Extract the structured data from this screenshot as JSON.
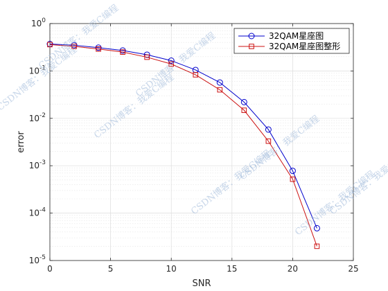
{
  "chart_data": {
    "type": "line",
    "xlabel": "SNR",
    "ylabel": "error",
    "xlim": [
      0,
      25
    ],
    "ylim": [
      1e-05,
      1
    ],
    "yscale": "log",
    "grid": "on (major and minor)",
    "legend_location": "top-right",
    "x_ticks": [
      "0",
      "5",
      "10",
      "15",
      "20",
      "25"
    ],
    "y_ticks": [
      {
        "base": "10",
        "exp": "0"
      },
      {
        "base": "10",
        "exp": "-1"
      },
      {
        "base": "10",
        "exp": "-2"
      },
      {
        "base": "10",
        "exp": "-3"
      },
      {
        "base": "10",
        "exp": "-4"
      },
      {
        "base": "10",
        "exp": "-5"
      }
    ],
    "series": [
      {
        "name": "32QAM星座图",
        "color": "#0000cc",
        "marker": "circle",
        "x": [
          0,
          2,
          4,
          6,
          8,
          10,
          12,
          14,
          16,
          18,
          20,
          22
        ],
        "y": [
          0.37,
          0.35,
          0.31,
          0.27,
          0.22,
          0.165,
          0.105,
          0.057,
          0.022,
          0.0058,
          0.00078,
          4.8e-05
        ]
      },
      {
        "name": "32QAM星座图整形",
        "color": "#cc1111",
        "marker": "square",
        "x": [
          0,
          2,
          4,
          6,
          8,
          10,
          12,
          14,
          16,
          18,
          20,
          22
        ],
        "y": [
          0.36,
          0.33,
          0.29,
          0.25,
          0.195,
          0.14,
          0.083,
          0.04,
          0.0148,
          0.0033,
          0.00052,
          2e-05
        ]
      }
    ],
    "watermark": "CSDN博客：我爱C编程"
  }
}
